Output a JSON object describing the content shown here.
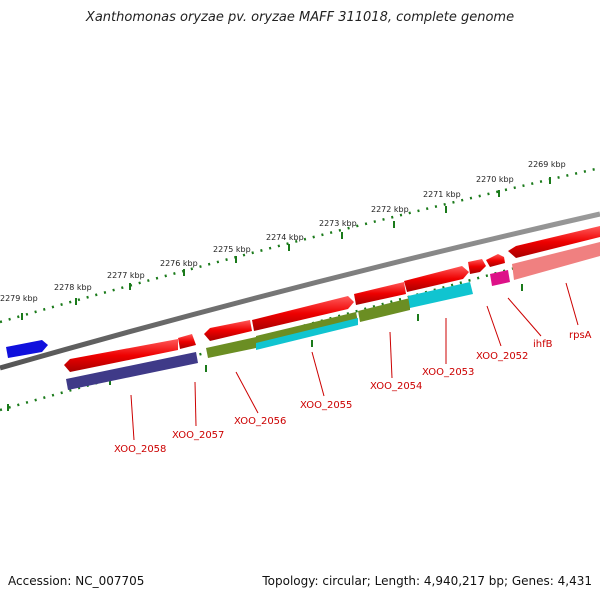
{
  "title": "Xanthomonas oryzae pv. oryzae MAFF 311018, complete genome",
  "footer": {
    "accession": "Accession: NC_007705",
    "topology": "Topology: circular; Length: 4,940,217 bp; Genes: 4,431"
  },
  "scale_labels": [
    "2279 kbp",
    "2278 kbp",
    "2277 kbp",
    "2276 kbp",
    "2275 kbp",
    "2274 kbp",
    "2273 kbp",
    "2272 kbp",
    "2271 kbp",
    "2270 kbp",
    "2269 kbp"
  ],
  "gene_labels": [
    "XOO_2058",
    "XOO_2057",
    "XOO_2056",
    "XOO_2055",
    "XOO_2054",
    "XOO_2053",
    "XOO_2052",
    "ihfB",
    "rpsA"
  ],
  "colors": {
    "gene": "#ee0000",
    "label": "#cc0000",
    "backbone": "#777777",
    "ticks": "#1a7a1a",
    "blue_block": "#1010dd",
    "purple_block": "#3f3a88",
    "olive_block": "#6b8e23",
    "cyan_block": "#10c4d0",
    "magenta_block": "#dd1188",
    "pink_block": "#f08080"
  }
}
